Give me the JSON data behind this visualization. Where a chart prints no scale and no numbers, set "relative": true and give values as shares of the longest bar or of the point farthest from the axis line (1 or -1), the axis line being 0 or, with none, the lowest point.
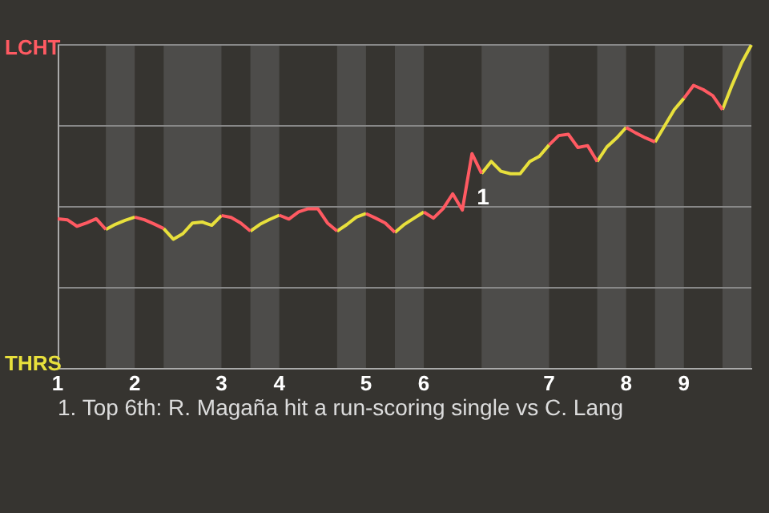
{
  "chart_data": {
    "type": "line",
    "relative": true,
    "annotations": [
      "LCHT",
      "THRS",
      "1",
      "1. Top 6th: R. Magaña hit a run-scoring single vs C. Lang"
    ],
    "categories": [
      "1",
      null,
      null,
      null,
      null,
      null,
      null,
      null,
      "2",
      null,
      null,
      null,
      null,
      null,
      null,
      null,
      null,
      "3",
      null,
      null,
      null,
      null,
      null,
      "4",
      null,
      null,
      null,
      null,
      null,
      null,
      null,
      null,
      "5",
      null,
      null,
      null,
      null,
      null,
      "6",
      null,
      null,
      null,
      null,
      null,
      null,
      null,
      null,
      null,
      null,
      null,
      null,
      "7",
      null,
      null,
      null,
      null,
      null,
      null,
      null,
      "8",
      null,
      null,
      null,
      null,
      null,
      "9",
      null,
      null,
      null,
      null,
      null,
      null,
      null
    ],
    "legend": false,
    "marker": "none",
    "line_style": "solid",
    "ref_lines": [
      {
        "axis": "y",
        "value": 0.25,
        "color": "#888888"
      },
      {
        "axis": "y",
        "value": 0.5,
        "color": "#888888"
      },
      {
        "axis": "y",
        "value": 0.75,
        "color": "#888888"
      },
      {
        "axis": "y",
        "value": 1,
        "color": "#888888"
      }
    ],
    "series": [
      {
        "color": "#ff5a62",
        "values": [
          0.463,
          0.46,
          0.44,
          0.45,
          0.463,
          0.43,
          null,
          null,
          0.468,
          0.46,
          0.447,
          0.433,
          null,
          null,
          null,
          null,
          null,
          0.473,
          0.467,
          0.45,
          0.425,
          null,
          null,
          0.474,
          0.462,
          0.484,
          0.494,
          0.494,
          0.45,
          0.425,
          null,
          null,
          0.479,
          0.465,
          0.45,
          0.421,
          null,
          null,
          0.484,
          0.465,
          0.494,
          0.54,
          0.49,
          0.664,
          0.603,
          null,
          null,
          null,
          null,
          null,
          null,
          0.691,
          0.72,
          0.724,
          0.683,
          0.689,
          0.64,
          null,
          null,
          0.745,
          0.728,
          0.713,
          0.7,
          null,
          null,
          0.835,
          0.875,
          0.862,
          0.843,
          0.8,
          null,
          null,
          null
        ]
      },
      {
        "color": "#e8e03c",
        "values": [
          null,
          null,
          null,
          null,
          null,
          0.43,
          0.446,
          0.458,
          0.468,
          null,
          null,
          0.433,
          0.4,
          0.417,
          0.45,
          0.453,
          0.443,
          0.473,
          null,
          null,
          0.425,
          0.446,
          0.461,
          0.474,
          null,
          null,
          null,
          null,
          null,
          0.425,
          0.445,
          0.468,
          0.479,
          null,
          null,
          0.421,
          0.446,
          0.465,
          0.484,
          null,
          null,
          null,
          null,
          null,
          0.603,
          0.64,
          0.61,
          0.602,
          0.602,
          0.64,
          0.656,
          0.691,
          null,
          null,
          null,
          null,
          0.64,
          0.685,
          0.712,
          0.745,
          null,
          null,
          0.7,
          0.75,
          0.8,
          0.835,
          null,
          null,
          null,
          0.8,
          0.876,
          0.945,
          1.0
        ]
      }
    ]
  }
}
